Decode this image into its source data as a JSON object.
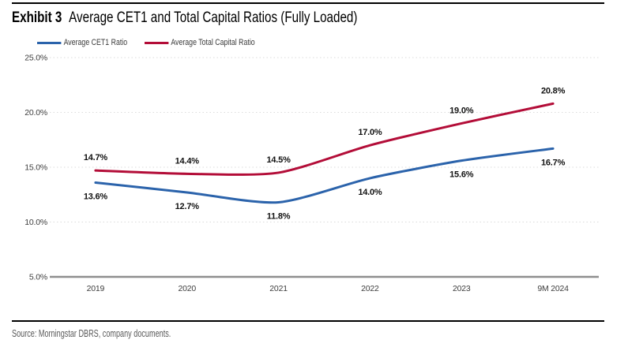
{
  "exhibit": {
    "label": "Exhibit 3",
    "title": "Average CET1 and Total Capital Ratios (Fully Loaded)"
  },
  "source": "Source: Morningstar DBRS, company documents.",
  "colors": {
    "rule": "#000000",
    "gridline": "#dbdbdb",
    "axis_line": "#8e8e8e",
    "tick_text": "#3d3d3d",
    "data_label_text": "#111111",
    "legend_text": "#3a3a3a",
    "source_text": "#595959"
  },
  "chart_data": {
    "type": "line",
    "title": "Average CET1 and Total Capital Ratios (Fully Loaded)",
    "categories": [
      "2019",
      "2020",
      "2021",
      "2022",
      "2023",
      "9M 2024"
    ],
    "series": [
      {
        "name": "Average CET1 Ratio",
        "color": "#2b63ab",
        "values": [
          13.6,
          12.7,
          11.8,
          14.0,
          15.6,
          16.7
        ],
        "label_position": "below"
      },
      {
        "name": "Average Total Capital Ratio",
        "color": "#b30d38",
        "values": [
          14.7,
          14.4,
          14.5,
          17.0,
          19.0,
          20.8
        ],
        "label_position": "above"
      }
    ],
    "y_ticks": [
      25.0,
      20.0,
      15.0,
      10.0,
      5.0
    ],
    "ylim": [
      5.0,
      25.0
    ],
    "value_label_decimals": 1,
    "value_suffix": "%",
    "grid": "dotted-horizontal",
    "legend_position": "top-left",
    "xlabel": "",
    "ylabel": ""
  }
}
